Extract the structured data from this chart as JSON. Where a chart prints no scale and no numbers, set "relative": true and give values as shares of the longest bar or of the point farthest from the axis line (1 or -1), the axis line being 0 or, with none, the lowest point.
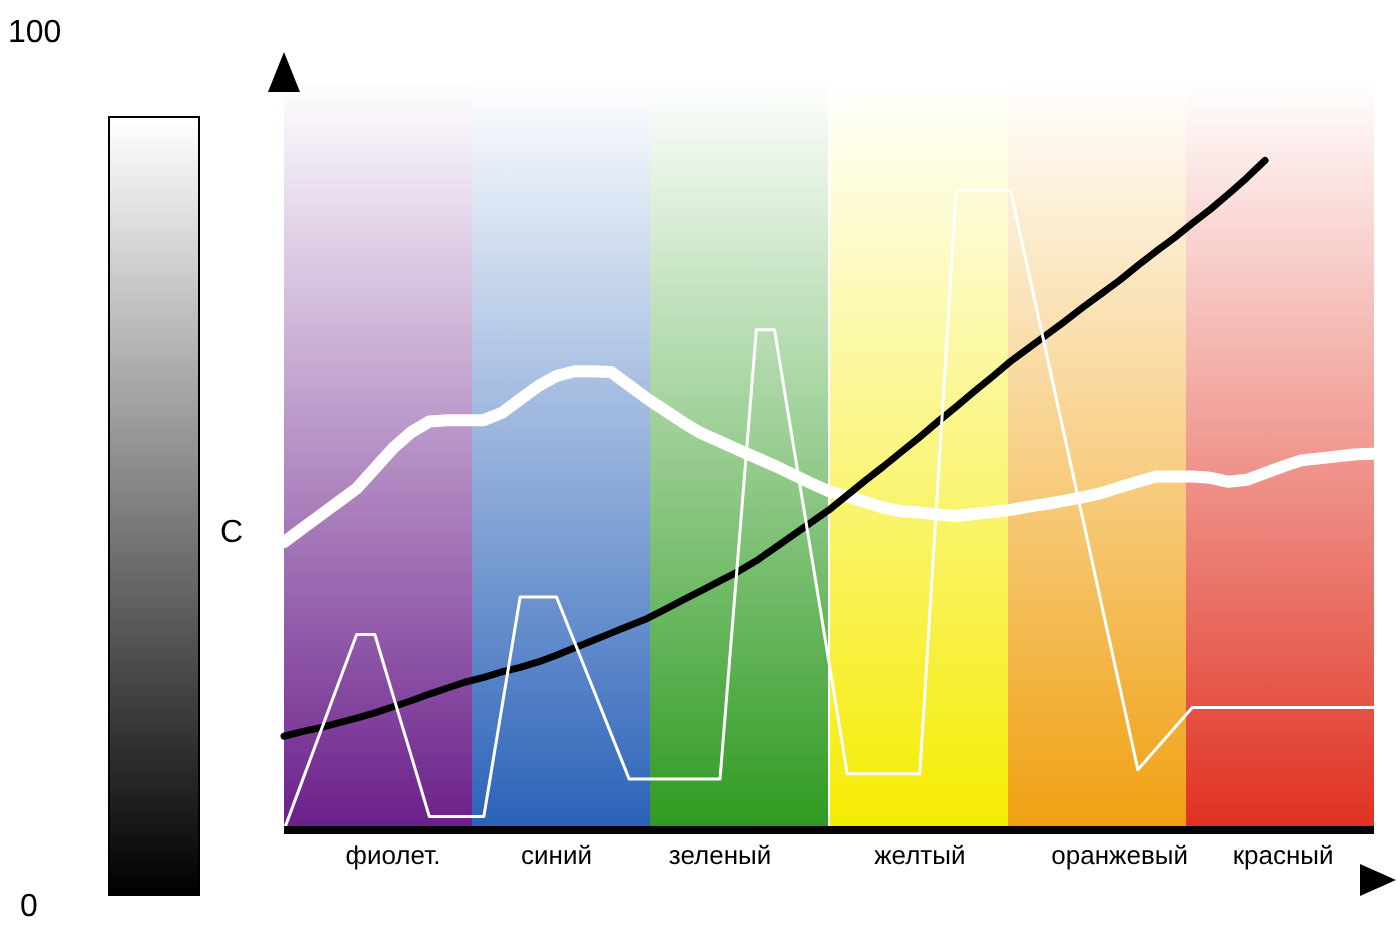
{
  "chart_data": {
    "type": "line",
    "relative": true,
    "tick_labels": "x",
    "marker": "none",
    "categories": [
      null,
      null,
      null,
      null,
      null,
      null,
      "фиолет.",
      null,
      null,
      null,
      null,
      null,
      null,
      null,
      null,
      "синий",
      null,
      null,
      null,
      null,
      null,
      null,
      null,
      null,
      "зеленый",
      null,
      null,
      null,
      null,
      null,
      null,
      null,
      null,
      null,
      null,
      "желтый",
      null,
      null,
      null,
      null,
      null,
      null,
      null,
      null,
      null,
      null,
      "оранжевый",
      null,
      null,
      null,
      null,
      null,
      null,
      null,
      null,
      "красный",
      null,
      null,
      null,
      null,
      null
    ],
    "annotations": [
      "100",
      "C",
      "0"
    ],
    "series": [
      {
        "color": "#ffffff",
        "values": [
          0.43,
          0.45,
          0.47,
          0.49,
          0.51,
          0.54,
          0.57,
          0.594,
          0.61,
          0.612,
          0.612,
          0.612,
          0.623,
          0.643,
          0.663,
          0.678,
          0.685,
          0.685,
          0.684,
          0.664,
          0.644,
          0.626,
          0.608,
          0.592,
          0.58,
          0.568,
          0.556,
          0.544,
          0.531,
          0.518,
          0.506,
          0.498,
          0.49,
          0.481,
          0.476,
          0.474,
          0.471,
          0.469,
          0.472,
          0.475,
          0.478,
          0.483,
          0.487,
          0.492,
          0.497,
          0.503,
          0.512,
          0.52,
          0.528,
          0.528,
          0.528,
          0.526,
          0.52,
          0.523,
          0.533,
          0.543,
          0.552,
          0.555,
          0.558,
          0.561,
          0.562
        ]
      },
      {
        "color": "#000000",
        "values": [
          0.14,
          0.147,
          0.153,
          0.16,
          0.167,
          0.175,
          0.184,
          0.193,
          0.203,
          0.212,
          0.221,
          0.228,
          0.236,
          0.243,
          0.251,
          0.261,
          0.272,
          0.283,
          0.294,
          0.305,
          0.316,
          0.33,
          0.344,
          0.358,
          0.372,
          0.386,
          0.402,
          0.421,
          0.44,
          0.459,
          0.478,
          0.5,
          0.522,
          0.543,
          0.565,
          0.587,
          0.61,
          0.632,
          0.655,
          0.677,
          0.7,
          0.72,
          0.74,
          0.76,
          0.781,
          0.801,
          0.821,
          0.843,
          0.864,
          0.884,
          0.906,
          0.927,
          0.95,
          0.974,
          1,
          null,
          null,
          null,
          null,
          null,
          null
        ]
      },
      {
        "color": "#ffffff",
        "values": [
          0,
          0.073,
          0.146,
          0.219,
          0.292,
          0.292,
          0.201,
          0.111,
          0.02,
          0.02,
          0.02,
          0.02,
          0.184,
          0.348,
          0.348,
          0.348,
          0.28,
          0.212,
          0.144,
          0.076,
          0.076,
          0.076,
          0.076,
          0.076,
          0.076,
          0.412,
          0.747,
          0.747,
          0.581,
          0.416,
          0.25,
          0.084,
          0.084,
          0.084,
          0.084,
          0.084,
          0.52,
          0.955,
          0.955,
          0.955,
          0.955,
          0.831,
          0.708,
          0.584,
          0.461,
          0.337,
          0.214,
          0.09,
          0.121,
          0.152,
          0.183,
          0.183,
          0.183,
          0.183,
          0.183,
          0.183,
          0.183,
          0.183,
          0.183,
          0.183,
          0.183
        ]
      }
    ]
  }
}
